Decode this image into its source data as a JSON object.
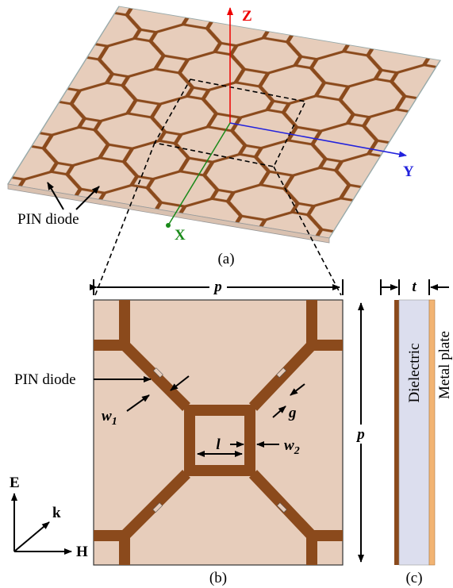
{
  "panel_a": {
    "axes": {
      "z": "Z",
      "y": "Y",
      "x": "X"
    },
    "pin_diode": "PIN diode",
    "caption": "(a)"
  },
  "panel_b": {
    "period_top": "p",
    "period_side": "p",
    "pin_diode": "PIN diode",
    "w1": {
      "base": "w",
      "sub": "1"
    },
    "g": "g",
    "w2": {
      "base": "w",
      "sub": "2"
    },
    "l": "l",
    "wave": {
      "e": "E",
      "k": "k",
      "h": "H"
    },
    "caption": "(b)"
  },
  "panel_c": {
    "t": "t",
    "dielectric": "Dielectric",
    "metal_plate": "Metal plate",
    "caption": "(c)"
  }
}
